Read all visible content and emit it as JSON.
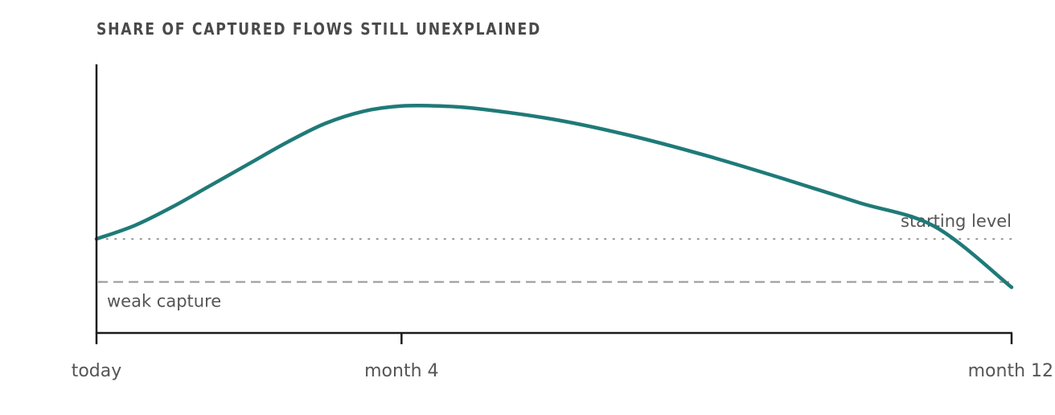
{
  "chart_data": {
    "type": "line",
    "title": "SHARE OF CAPTURED FLOWS STILL UNEXPLAINED",
    "xlabel": "",
    "ylabel": "",
    "x_ticks": [
      {
        "x": 0,
        "label": "today"
      },
      {
        "x": 4,
        "label": "month 4"
      },
      {
        "x": 12,
        "label": "month 12"
      }
    ],
    "xlim": [
      0,
      12
    ],
    "ylim": [
      0,
      100
    ],
    "grid": false,
    "legend": "none",
    "series": [
      {
        "color": "#1f7a78",
        "points": [
          {
            "x": 0,
            "y": 35
          },
          {
            "x": 0.5,
            "y": 40
          },
          {
            "x": 1,
            "y": 47
          },
          {
            "x": 1.5,
            "y": 55
          },
          {
            "x": 2,
            "y": 63
          },
          {
            "x": 2.5,
            "y": 71
          },
          {
            "x": 3,
            "y": 78
          },
          {
            "x": 3.5,
            "y": 82.5
          },
          {
            "x": 4,
            "y": 84.5
          },
          {
            "x": 4.5,
            "y": 84.5
          },
          {
            "x": 5,
            "y": 83.5
          },
          {
            "x": 6,
            "y": 79.5
          },
          {
            "x": 7,
            "y": 73.5
          },
          {
            "x": 8,
            "y": 66
          },
          {
            "x": 9,
            "y": 57.5
          },
          {
            "x": 10,
            "y": 48.5
          },
          {
            "x": 11,
            "y": 39.5
          },
          {
            "x": 12,
            "y": 17
          }
        ]
      }
    ],
    "reference_lines": [
      {
        "name": "starting level",
        "y": 35,
        "style": "dotted",
        "label_position": "right",
        "color": "#8a8a8a"
      },
      {
        "name": "weak capture",
        "y": 19,
        "style": "dashed",
        "label_position": "left",
        "color": "#9a9a9a"
      }
    ]
  }
}
